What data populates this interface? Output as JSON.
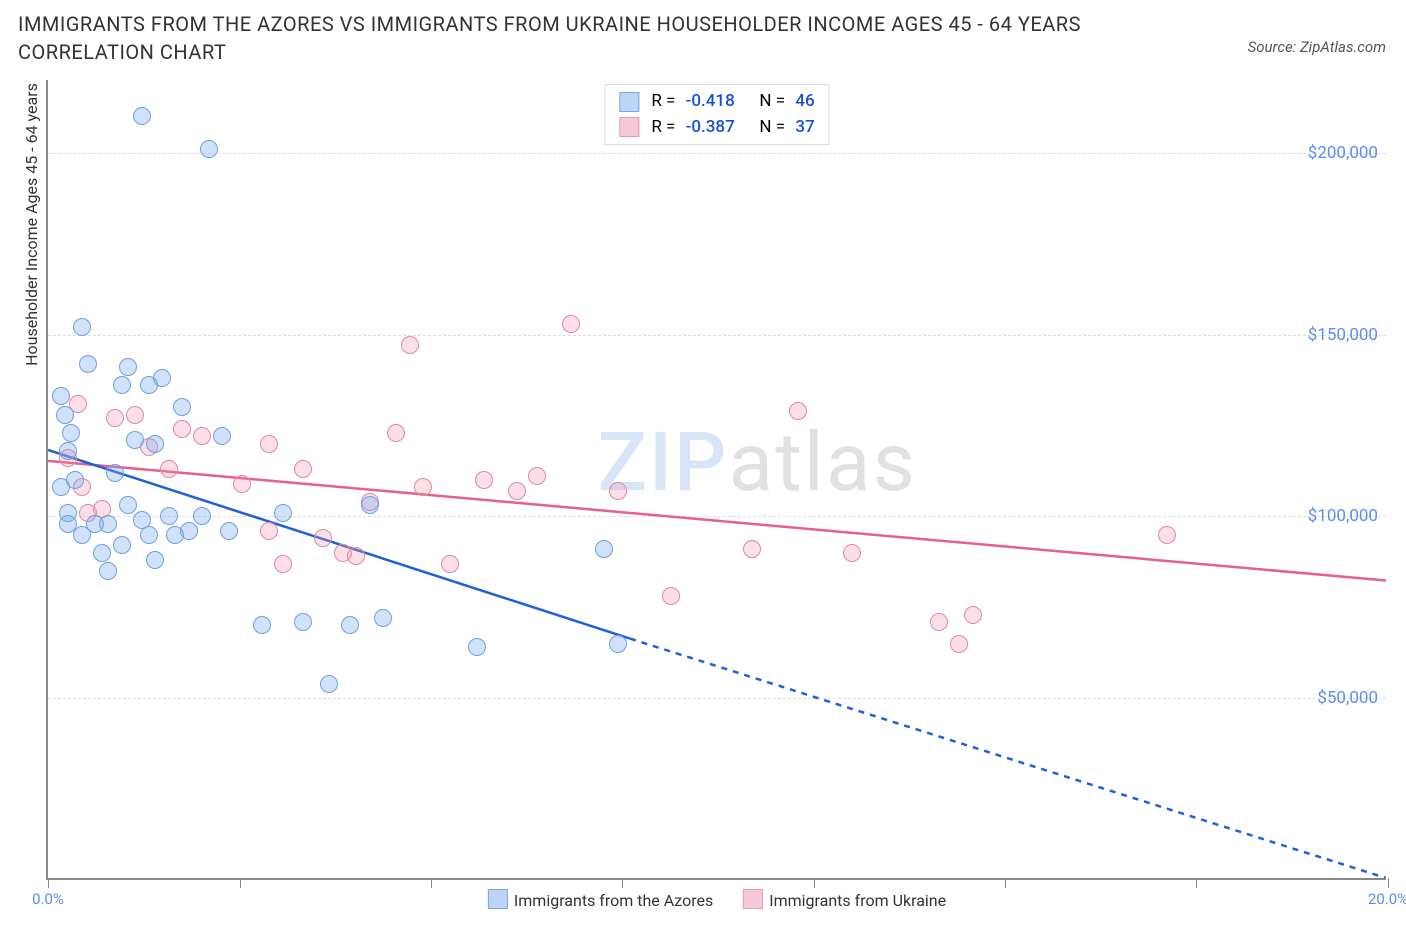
{
  "title": "IMMIGRANTS FROM THE AZORES VS IMMIGRANTS FROM UKRAINE HOUSEHOLDER INCOME AGES 45 - 64 YEARS CORRELATION CHART",
  "source_label": "Source: ZipAtlas.com",
  "watermark_zip": "ZIP",
  "watermark_atlas": "atlas",
  "chart": {
    "type": "scatter",
    "yaxis_title": "Householder Income Ages 45 - 64 years",
    "xlim": [
      0,
      20
    ],
    "ylim": [
      0,
      220000
    ],
    "yticks": [
      {
        "v": 50000,
        "label": "$50,000"
      },
      {
        "v": 100000,
        "label": "$100,000"
      },
      {
        "v": 150000,
        "label": "$150,000"
      },
      {
        "v": 200000,
        "label": "$200,000"
      }
    ],
    "xtick_positions": [
      0,
      2.86,
      5.71,
      8.57,
      11.43,
      14.29,
      17.14,
      20
    ],
    "xtick_labels": [
      {
        "v": 0,
        "label": "0.0%"
      },
      {
        "v": 20,
        "label": "20.0%"
      }
    ],
    "series_a": {
      "name": "Immigrants from the Azores",
      "color_fill": "rgba(120,170,240,0.35)",
      "color_stroke": "#6fa0e0",
      "swatch_fill": "#bcd4f5",
      "swatch_stroke": "#7aa8e0",
      "trend_color": "#1f5fd8",
      "R": "-0.418",
      "N": "46",
      "trend": {
        "x1": 0,
        "y1": 118000,
        "x2_solid": 8.7,
        "y2_solid": 66000,
        "x2_dash": 20,
        "y2_dash": 0
      },
      "points": [
        [
          0.2,
          133000
        ],
        [
          0.3,
          101000
        ],
        [
          0.3,
          118000
        ],
        [
          0.25,
          128000
        ],
        [
          0.2,
          108000
        ],
        [
          0.3,
          98000
        ],
        [
          0.5,
          152000
        ],
        [
          0.5,
          95000
        ],
        [
          0.6,
          142000
        ],
        [
          0.7,
          98000
        ],
        [
          0.8,
          90000
        ],
        [
          0.9,
          98000
        ],
        [
          1.0,
          112000
        ],
        [
          1.1,
          136000
        ],
        [
          1.2,
          141000
        ],
        [
          1.2,
          103000
        ],
        [
          1.3,
          121000
        ],
        [
          1.4,
          99000
        ],
        [
          1.5,
          136000
        ],
        [
          1.5,
          95000
        ],
        [
          1.6,
          120000
        ],
        [
          1.4,
          210000
        ],
        [
          1.7,
          138000
        ],
        [
          1.8,
          100000
        ],
        [
          1.9,
          95000
        ],
        [
          2.0,
          130000
        ],
        [
          2.1,
          96000
        ],
        [
          2.3,
          100000
        ],
        [
          2.4,
          201000
        ],
        [
          2.6,
          122000
        ],
        [
          2.7,
          96000
        ],
        [
          3.2,
          70000
        ],
        [
          3.5,
          101000
        ],
        [
          3.8,
          71000
        ],
        [
          4.2,
          54000
        ],
        [
          4.5,
          70000
        ],
        [
          4.8,
          103000
        ],
        [
          5.0,
          72000
        ],
        [
          6.4,
          64000
        ],
        [
          8.3,
          91000
        ],
        [
          8.5,
          65000
        ],
        [
          0.9,
          85000
        ],
        [
          1.1,
          92000
        ],
        [
          1.6,
          88000
        ],
        [
          0.4,
          110000
        ],
        [
          0.35,
          123000
        ]
      ]
    },
    "series_b": {
      "name": "Immigrants from Ukraine",
      "color_fill": "rgba(240,150,175,0.30)",
      "color_stroke": "#e089a3",
      "swatch_fill": "#f6c8d6",
      "swatch_stroke": "#e49bb2",
      "trend_color": "#e85f87",
      "R": "-0.387",
      "N": "37",
      "trend": {
        "x1": 0,
        "y1": 115000,
        "x2_solid": 20,
        "y2_solid": 82000
      },
      "points": [
        [
          0.3,
          116000
        ],
        [
          0.45,
          131000
        ],
        [
          0.6,
          101000
        ],
        [
          0.8,
          102000
        ],
        [
          1.0,
          127000
        ],
        [
          1.3,
          128000
        ],
        [
          1.5,
          119000
        ],
        [
          1.8,
          113000
        ],
        [
          2.0,
          124000
        ],
        [
          2.3,
          122000
        ],
        [
          2.9,
          109000
        ],
        [
          3.3,
          120000
        ],
        [
          3.3,
          96000
        ],
        [
          3.5,
          87000
        ],
        [
          3.8,
          113000
        ],
        [
          4.1,
          94000
        ],
        [
          4.4,
          90000
        ],
        [
          4.6,
          89000
        ],
        [
          4.8,
          104000
        ],
        [
          5.2,
          123000
        ],
        [
          5.4,
          147000
        ],
        [
          5.6,
          108000
        ],
        [
          6.0,
          87000
        ],
        [
          6.5,
          110000
        ],
        [
          7.0,
          107000
        ],
        [
          7.3,
          111000
        ],
        [
          7.8,
          153000
        ],
        [
          8.5,
          107000
        ],
        [
          9.3,
          78000
        ],
        [
          10.5,
          91000
        ],
        [
          11.2,
          129000
        ],
        [
          12.0,
          90000
        ],
        [
          13.3,
          71000
        ],
        [
          13.6,
          65000
        ],
        [
          13.8,
          73000
        ],
        [
          16.7,
          95000
        ],
        [
          0.5,
          108000
        ]
      ]
    },
    "legend_box": {
      "r_prefix": "R = ",
      "n_prefix": "N = "
    }
  }
}
